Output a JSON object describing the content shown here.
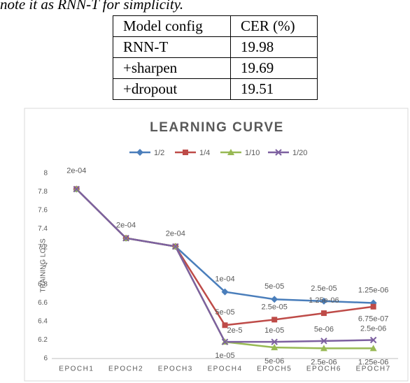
{
  "text": {
    "caption": "note it as RNN-T for simplicity."
  },
  "table": {
    "header": [
      "Model config",
      "CER (%)"
    ],
    "rows": [
      [
        "RNN-T",
        19.98
      ],
      [
        "+sharpen",
        19.69
      ],
      [
        "+dropout",
        19.51
      ]
    ]
  },
  "chart_data": {
    "type": "line",
    "title": "LEARNING CURVE",
    "y_label": "TRAINING LOSS",
    "categories": [
      "EPOCH1",
      "EPOCH2",
      "EPOCH3",
      "EPOCH4",
      "EPOCH5",
      "EPOCH6",
      "EPOCH7"
    ],
    "ylim": [
      6,
      8
    ],
    "yticks": [
      6,
      6.2,
      6.4,
      6.6,
      6.8,
      7,
      7.2,
      7.4,
      7.6,
      7.8,
      8
    ],
    "grid": false,
    "legend": "top",
    "shared_learning_rates": [
      "2e-04",
      "2e-04",
      "2e-04"
    ],
    "series": [
      {
        "name": "1/2",
        "color": "#4a7ebb",
        "marker": "diamond",
        "values": [
          7.83,
          7.3,
          7.21,
          6.72,
          6.64,
          6.62,
          6.6
        ],
        "learning_rates": [
          "1e-04",
          "5e-05",
          "2.5e-05",
          "1.25e-06"
        ]
      },
      {
        "name": "1/4",
        "color": "#be4b48",
        "marker": "square",
        "values": [
          7.83,
          7.3,
          7.21,
          6.36,
          6.42,
          6.49,
          6.56
        ],
        "learning_rates": [
          "5e-05",
          "2.5e-05",
          "1.25e-06",
          "6.75e-07"
        ]
      },
      {
        "name": "1/10",
        "color": "#98b954",
        "marker": "triangle",
        "values": [
          7.83,
          7.3,
          7.21,
          6.18,
          6.12,
          6.11,
          6.11
        ],
        "learning_rates": [
          "1e-05",
          "5e-06",
          "2.5e-06",
          "1.25e-06"
        ]
      },
      {
        "name": "1/20",
        "color": "#7d60a0",
        "marker": "x",
        "values": [
          7.83,
          7.3,
          7.21,
          6.18,
          6.18,
          6.19,
          6.2
        ],
        "learning_rates": [
          "2e-5",
          "1e-05",
          "5e-06",
          "2.5e-06"
        ]
      }
    ]
  }
}
